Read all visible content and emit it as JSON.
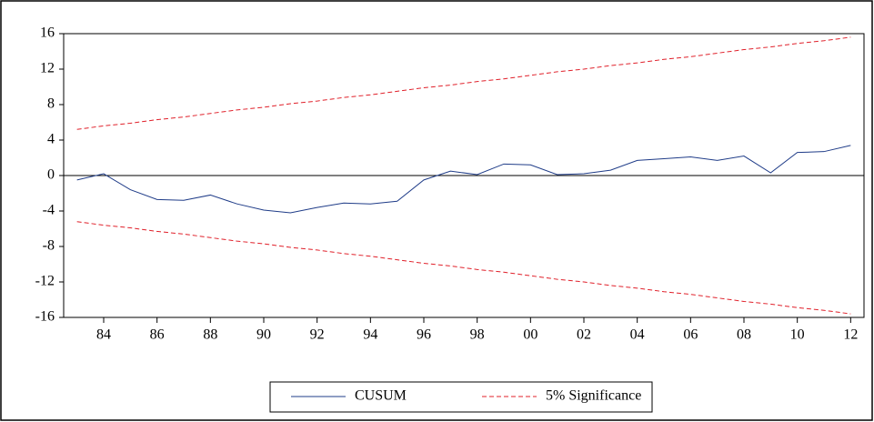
{
  "chart_data": {
    "type": "line",
    "x": [
      1983,
      1984,
      1985,
      1986,
      1987,
      1988,
      1989,
      1990,
      1991,
      1992,
      1993,
      1994,
      1995,
      1996,
      1997,
      1998,
      1999,
      2000,
      2001,
      2002,
      2003,
      2004,
      2005,
      2006,
      2007,
      2008,
      2009,
      2010,
      2011,
      2012
    ],
    "series": [
      {
        "name": "CUSUM",
        "color": "#1f3c88",
        "dashed": false,
        "values": [
          -0.5,
          0.2,
          -1.6,
          -2.7,
          -2.8,
          -2.2,
          -3.2,
          -3.9,
          -4.2,
          -3.6,
          -3.1,
          -3.2,
          -2.9,
          -0.5,
          0.5,
          0.1,
          1.3,
          1.2,
          0.1,
          0.2,
          0.6,
          1.7,
          1.9,
          2.1,
          1.7,
          2.2,
          0.3,
          2.6,
          2.7,
          3.4
        ]
      },
      {
        "name": "5% Significance",
        "color": "#e0202a",
        "dashed": true,
        "values": [
          5.2,
          5.6,
          5.9,
          6.3,
          6.6,
          7.0,
          7.4,
          7.7,
          8.1,
          8.4,
          8.8,
          9.1,
          9.5,
          9.9,
          10.2,
          10.6,
          10.9,
          11.3,
          11.7,
          12.0,
          12.4,
          12.7,
          13.1,
          13.4,
          13.8,
          14.2,
          14.5,
          14.9,
          15.2,
          15.6
        ]
      },
      {
        "color": "#e0202a",
        "dashed": true,
        "values": [
          -5.2,
          -5.6,
          -5.9,
          -6.3,
          -6.6,
          -7.0,
          -7.4,
          -7.7,
          -8.1,
          -8.4,
          -8.8,
          -9.1,
          -9.5,
          -9.9,
          -10.2,
          -10.6,
          -10.9,
          -11.3,
          -11.7,
          -12.0,
          -12.4,
          -12.7,
          -13.1,
          -13.4,
          -13.8,
          -14.2,
          -14.5,
          -14.9,
          -15.2,
          -15.6
        ]
      }
    ],
    "xlim": [
      1982.5,
      2012.5
    ],
    "xticks": [
      {
        "value": 1984,
        "label": "84"
      },
      {
        "value": 1986,
        "label": "86"
      },
      {
        "value": 1988,
        "label": "88"
      },
      {
        "value": 1990,
        "label": "90"
      },
      {
        "value": 1992,
        "label": "92"
      },
      {
        "value": 1994,
        "label": "94"
      },
      {
        "value": 1996,
        "label": "96"
      },
      {
        "value": 1998,
        "label": "98"
      },
      {
        "value": 2000,
        "label": "00"
      },
      {
        "value": 2002,
        "label": "02"
      },
      {
        "value": 2004,
        "label": "04"
      },
      {
        "value": 2006,
        "label": "06"
      },
      {
        "value": 2008,
        "label": "08"
      },
      {
        "value": 2010,
        "label": "10"
      },
      {
        "value": 2012,
        "label": "12"
      }
    ],
    "ylim": [
      -16,
      16
    ],
    "yticks": [
      -16,
      -12,
      -8,
      -4,
      0,
      4,
      8,
      12,
      16
    ],
    "zero_line": true
  }
}
